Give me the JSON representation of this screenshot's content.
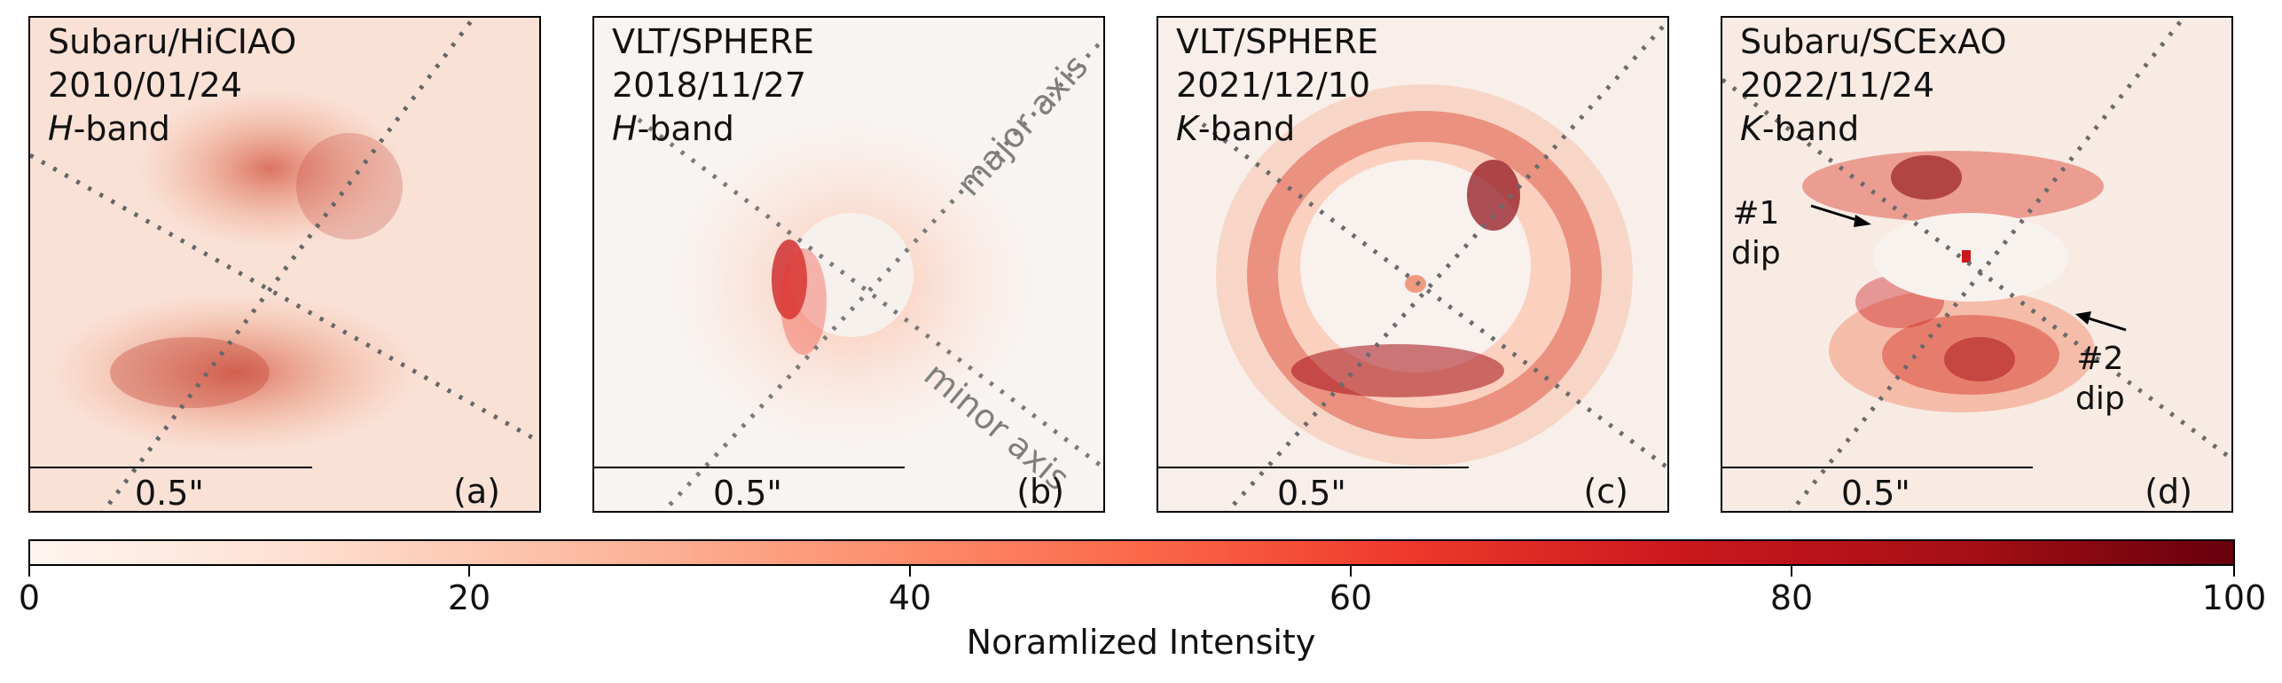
{
  "panels": [
    {
      "instrument": "Subaru/HiCIAO",
      "date": "2010/01/24",
      "band_letter": "H",
      "band_suffix": "-band",
      "scale": "0.5\"",
      "letter": "(a)"
    },
    {
      "instrument": "VLT/SPHERE",
      "date": "2018/11/27",
      "band_letter": "H",
      "band_suffix": "-band",
      "scale": "0.5\"",
      "letter": "(b)"
    },
    {
      "instrument": "VLT/SPHERE",
      "date": "2021/12/10",
      "band_letter": "K",
      "band_suffix": "-band",
      "scale": "0.5\"",
      "letter": "(c)"
    },
    {
      "instrument": "Subaru/SCExAO",
      "date": "2022/11/24",
      "band_letter": "K",
      "band_suffix": "-band",
      "scale": "0.5\"",
      "letter": "(d)"
    }
  ],
  "axes": {
    "major": "major axis",
    "minor": "minor axis"
  },
  "dips": {
    "one": "#1\ndip",
    "two": "#2\ndip"
  },
  "colorbar": {
    "title": "Noramlized Intensity",
    "ticks": [
      "0",
      "20",
      "40",
      "60",
      "80",
      "100"
    ],
    "range": [
      0,
      100
    ],
    "colors": {
      "low": "#fff5f0",
      "high": "#67000d"
    }
  }
}
